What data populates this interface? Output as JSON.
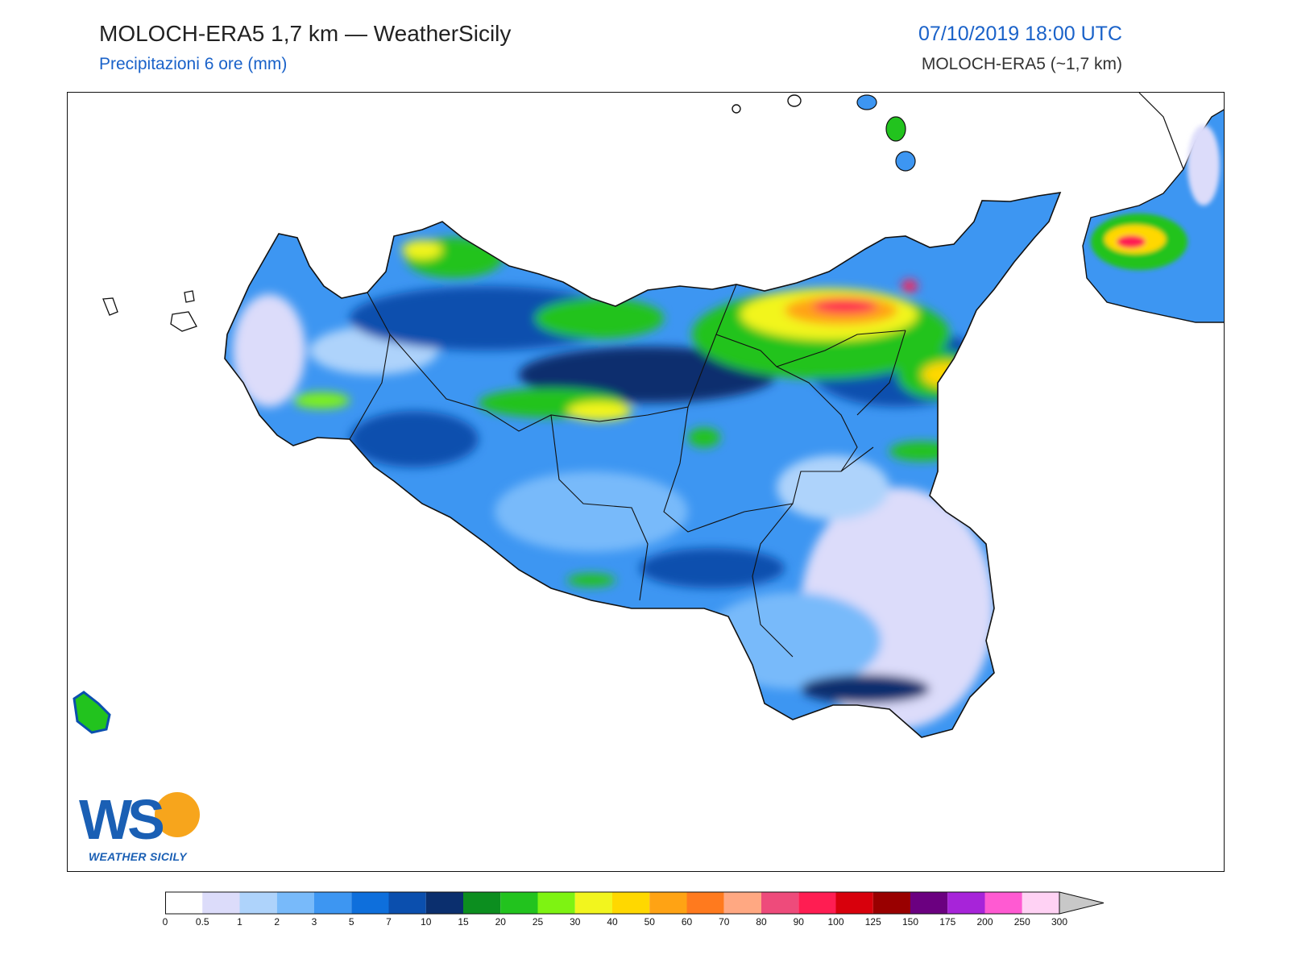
{
  "header": {
    "title": "MOLOCH-ERA5 1,7 km — WeatherSicily",
    "subtitle": "Precipitazioni 6 ore (mm)",
    "datetime": "07/10/2019 18:00 UTC",
    "model": "MOLOCH-ERA5 (~1,7 km)"
  },
  "logo": {
    "letters": "WS",
    "text": "WEATHER SICILY"
  },
  "colorbar": {
    "labels": [
      "0",
      "0.5",
      "1",
      "2",
      "3",
      "5",
      "7",
      "10",
      "15",
      "20",
      "25",
      "30",
      "40",
      "50",
      "60",
      "70",
      "80",
      "90",
      "100",
      "125",
      "150",
      "175",
      "200",
      "250",
      "300"
    ],
    "colors": [
      "#ffffff",
      "#dcdcfa",
      "#aed3fb",
      "#78bafa",
      "#3d96f2",
      "#0e6fdc",
      "#0b4fae",
      "#0b2f6e",
      "#0c8e1f",
      "#22c31e",
      "#7ef312",
      "#f2f51e",
      "#ffd800",
      "#ffa314",
      "#ff7a1e",
      "#ffa882",
      "#ee4b7b",
      "#ff1d52",
      "#d8000c",
      "#990000",
      "#6b0080",
      "#a724d9",
      "#ff5ad2",
      "#ffd2f4"
    ],
    "extend_color": "#c8c8c8"
  },
  "map": {
    "region": "Sicilia",
    "field": "precipitation_6h_mm",
    "colors": {
      "land_light": "#dcdcfa",
      "land_base": "#78bafa",
      "land_mid": "#3d96f2",
      "land_dark": "#0e6fdc",
      "land_darker": "#0b4fae",
      "land_darkest": "#0b2f6e",
      "green": "#22c31e",
      "lime": "#7ef312",
      "yellow": "#f2f51e",
      "orange": "#ffa314",
      "red": "#ff1d52"
    }
  }
}
